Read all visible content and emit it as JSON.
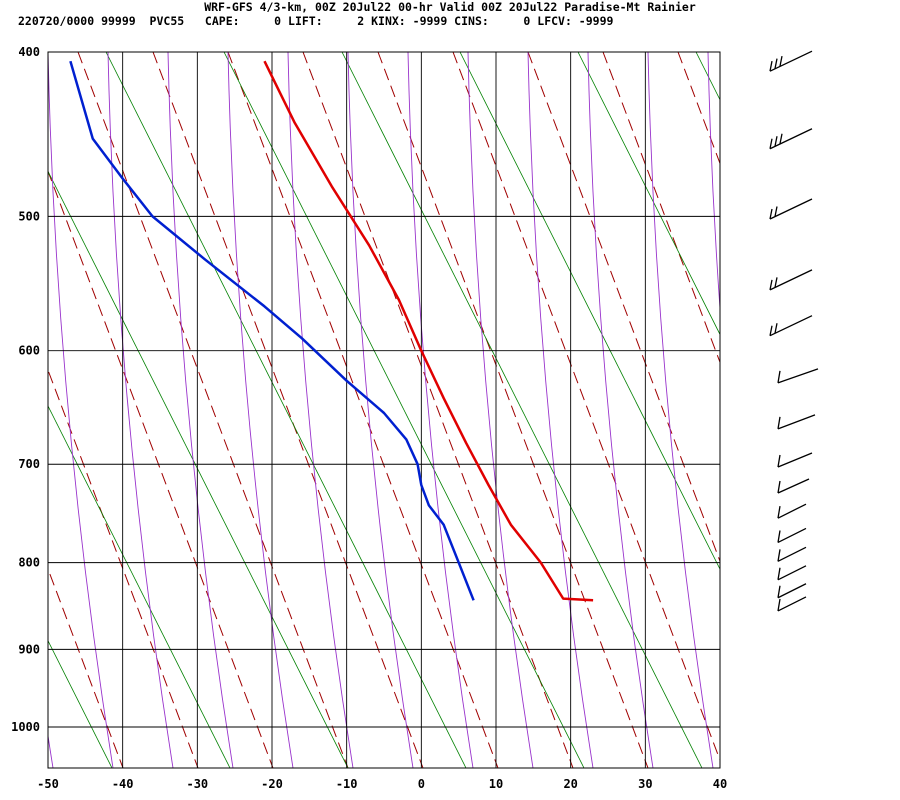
{
  "chart_data": {
    "type": "line",
    "title": "WRF-GFS 4/3-km, 00Z 20Jul22 00-hr Valid 00Z 20Jul22 Paradise-Mt Rainier",
    "subtitle": "220720/0000 99999  PVC55   CAPE:     0 LIFT:     2 KINX: -9999 CINS:     0 LFCV: -9999",
    "x_ticks": [
      -50,
      -40,
      -30,
      -20,
      -10,
      0,
      10,
      20,
      30,
      40
    ],
    "y_ticks": [
      400,
      500,
      600,
      700,
      800,
      900,
      1000
    ],
    "xlim": [
      -50,
      40
    ],
    "ylim": [
      400,
      1040
    ],
    "series": [
      {
        "color": "#e00000",
        "points": [
          [
            -21,
            405
          ],
          [
            -17,
            440
          ],
          [
            -12,
            480
          ],
          [
            -7,
            520
          ],
          [
            -3,
            560
          ],
          [
            0,
            600
          ],
          [
            3,
            640
          ],
          [
            6,
            680
          ],
          [
            9,
            720
          ],
          [
            12,
            760
          ],
          [
            16,
            800
          ],
          [
            19,
            840
          ],
          [
            23,
            842
          ]
        ]
      },
      {
        "color": "#0020d0",
        "points": [
          [
            -47,
            405
          ],
          [
            -44,
            450
          ],
          [
            -40,
            475
          ],
          [
            -36,
            500
          ],
          [
            -29,
            530
          ],
          [
            -21,
            565
          ],
          [
            -16,
            590
          ],
          [
            -10,
            625
          ],
          [
            -5,
            653
          ],
          [
            -2,
            677
          ],
          [
            -0.5,
            700
          ],
          [
            0,
            720
          ],
          [
            1,
            740
          ],
          [
            3,
            760
          ],
          [
            5,
            800
          ],
          [
            7,
            842
          ]
        ]
      }
    ],
    "wind_barbs": {
      "color": "#000000",
      "pressures": [
        405,
        450,
        495,
        545,
        580,
        620,
        660,
        695,
        720,
        745,
        770,
        790,
        810,
        830,
        845
      ]
    },
    "background_lines": {
      "isotherm_color": "#000000",
      "dry_adiabat_color": "#a00000",
      "moist_adiabat_color": "#9933cc",
      "mixing_ratio_color": "#008000"
    }
  }
}
